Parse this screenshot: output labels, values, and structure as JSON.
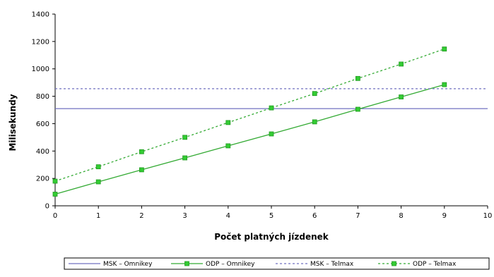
{
  "chart_data": {
    "type": "line",
    "xlabel": "Počet platných jízdenek",
    "ylabel": "Milisekundy",
    "xlim": [
      0,
      10
    ],
    "ylim": [
      0,
      1400
    ],
    "x_ticks": [
      0,
      1,
      2,
      3,
      4,
      5,
      6,
      7,
      8,
      9,
      10
    ],
    "y_ticks": [
      0,
      200,
      400,
      600,
      800,
      1000,
      1200,
      1400
    ],
    "grid": false,
    "legend_position": "bottom",
    "series": [
      {
        "name": "MSK – Omnikey",
        "style": "solid",
        "color": "#7070c0",
        "marker": "none",
        "x": [
          0,
          10
        ],
        "y": [
          710,
          710
        ]
      },
      {
        "name": "ODP – Omnikey",
        "style": "solid",
        "color": "#33aa33",
        "marker": "square",
        "x": [
          0,
          1,
          2,
          3,
          4,
          5,
          6,
          7,
          8,
          9
        ],
        "y": [
          85,
          175,
          263,
          350,
          438,
          525,
          613,
          705,
          795,
          885
        ]
      },
      {
        "name": "MSK – Telmax",
        "style": "dashed",
        "color": "#7070c0",
        "marker": "none",
        "x": [
          0,
          10
        ],
        "y": [
          855,
          855
        ]
      },
      {
        "name": "ODP – Telmax",
        "style": "dashed",
        "color": "#33aa33",
        "marker": "square",
        "x": [
          0,
          1,
          2,
          3,
          4,
          5,
          6,
          7,
          8,
          9
        ],
        "y": [
          180,
          285,
          395,
          500,
          608,
          715,
          820,
          930,
          1035,
          1145
        ]
      }
    ]
  }
}
